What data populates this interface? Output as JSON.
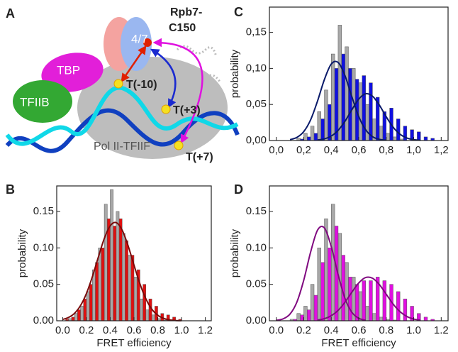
{
  "panels": [
    "A",
    "B",
    "C",
    "D"
  ],
  "diagram": {
    "rpb7": "Rpb7-",
    "c150": "C150",
    "tbp": "TBP",
    "tfiib": "TFIIB",
    "sub47": "4/7",
    "t_minus10": "T(-10)",
    "t_plus3": "T(+3)",
    "t_plus7": "T(+7)",
    "polii": "Pol II-TFIIF"
  },
  "chart_data": [
    {
      "type": "histogram",
      "ylabel": "probability",
      "xlabel": "FRET efficiency",
      "bins": [
        0,
        0.05,
        0.1,
        0.15,
        0.2,
        0.25,
        0.3,
        0.35,
        0.4,
        0.45,
        0.5,
        0.55,
        0.6,
        0.65,
        0.7,
        0.75,
        0.8,
        0.85,
        0.9,
        0.95,
        1.0,
        1.05,
        1.1,
        1.15,
        1.2
      ],
      "series": [
        {
          "color": "#a8a8a8",
          "values": [
            0,
            0.003,
            0.01,
            0.02,
            0.04,
            0.07,
            0.1,
            0.16,
            0.18,
            0.15,
            0.12,
            0.09,
            0.06,
            0.03,
            0.015,
            0.008,
            0.003,
            0.001,
            0,
            0,
            0,
            0,
            0,
            0
          ]
        },
        {
          "color": "#e01010",
          "values": [
            0.002,
            0.005,
            0.015,
            0.03,
            0.05,
            0.08,
            0.1,
            0.14,
            0.13,
            0.14,
            0.11,
            0.09,
            0.07,
            0.05,
            0.03,
            0.02,
            0.01,
            0.008,
            0.005,
            0.002,
            0,
            0,
            0,
            0
          ]
        }
      ],
      "curves": [
        {
          "color": "#7a0a0a",
          "x": [
            0,
            0.05,
            0.1,
            0.15,
            0.2,
            0.25,
            0.3,
            0.35,
            0.4,
            0.45,
            0.5,
            0.55,
            0.6,
            0.65,
            0.7,
            0.75,
            0.8,
            0.85,
            0.9,
            0.95,
            1.0
          ],
          "values": [
            0.0018,
            0.0046,
            0.0103,
            0.0208,
            0.0375,
            0.0605,
            0.0873,
            0.1128,
            0.1303,
            0.1347,
            0.1246,
            0.1032,
            0.0764,
            0.0507,
            0.0301,
            0.0159,
            0.0076,
            0.0032,
            0.0012,
            0.0004,
            0.0001
          ]
        }
      ],
      "xlim": [
        -0.05,
        1.25
      ],
      "ylim": [
        0,
        0.185
      ],
      "xticks": [
        {
          "value": 0,
          "label": "0.0"
        },
        {
          "value": 0.2,
          "label": "0.2"
        },
        {
          "value": 0.4,
          "label": "0.4"
        },
        {
          "value": 0.6,
          "label": "0.6"
        },
        {
          "value": 0.8,
          "label": "0.8"
        },
        {
          "value": 1,
          "label": "1.0"
        },
        {
          "value": 1.2,
          "label": "1.2"
        }
      ],
      "yticks": [
        {
          "value": 0,
          "label": "0.00"
        },
        {
          "value": 0.05,
          "label": "0.05"
        },
        {
          "value": 0.1,
          "label": "0.10"
        },
        {
          "value": 0.15,
          "label": "0.15"
        }
      ]
    },
    {
      "type": "histogram",
      "ylabel": "probability",
      "bins": [
        0,
        0.05,
        0.1,
        0.15,
        0.2,
        0.25,
        0.3,
        0.35,
        0.4,
        0.45,
        0.5,
        0.55,
        0.6,
        0.65,
        0.7,
        0.75,
        0.8,
        0.85,
        0.9,
        0.95,
        1.0,
        1.05,
        1.1,
        1.15,
        1.2
      ],
      "series": [
        {
          "color": "#a8a8a8",
          "values": [
            0,
            0,
            0,
            0.003,
            0.01,
            0.02,
            0.04,
            0.07,
            0.12,
            0.16,
            0.13,
            0.1,
            0.08,
            0.05,
            0.03,
            0.02,
            0.01,
            0.005,
            0.002,
            0,
            0,
            0,
            0,
            0
          ]
        },
        {
          "color": "#1010e0",
          "values": [
            0,
            0,
            0,
            0.002,
            0.005,
            0.01,
            0.03,
            0.05,
            0.1,
            0.12,
            0.1,
            0.085,
            0.09,
            0.08,
            0.06,
            0.04,
            0.045,
            0.03,
            0.02,
            0.015,
            0.012,
            0.005,
            0.003,
            0
          ]
        }
      ],
      "curves": [
        {
          "color": "#0a1a6a",
          "x": [
            0.1,
            0.15,
            0.2,
            0.25,
            0.3,
            0.35,
            0.4,
            0.45,
            0.5,
            0.55,
            0.6,
            0.65,
            0.7,
            0.75,
            0.8
          ],
          "values": [
            0.0012,
            0.0043,
            0.0124,
            0.0288,
            0.0547,
            0.0845,
            0.106,
            0.1082,
            0.0899,
            0.0607,
            0.0333,
            0.0149,
            0.0054,
            0.0016,
            0.0004
          ]
        },
        {
          "color": "#0a1a6a",
          "x": [
            0.3,
            0.35,
            0.4,
            0.45,
            0.5,
            0.55,
            0.6,
            0.65,
            0.7,
            0.75,
            0.8,
            0.85,
            0.9,
            0.95,
            1.0,
            1.05
          ],
          "values": [
            0.0007,
            0.0023,
            0.0062,
            0.0141,
            0.0267,
            0.0427,
            0.0574,
            0.0648,
            0.0615,
            0.0491,
            0.0329,
            0.0186,
            0.0088,
            0.0035,
            0.0012,
            0.0003
          ]
        }
      ],
      "xlim": [
        -0.05,
        1.25
      ],
      "ylim": [
        0,
        0.185
      ],
      "xticks": [
        {
          "value": 0,
          "label": "0,0"
        },
        {
          "value": 0.2,
          "label": "0,2"
        },
        {
          "value": 0.4,
          "label": "0,4"
        },
        {
          "value": 0.6,
          "label": "0,6"
        },
        {
          "value": 0.8,
          "label": "0,8"
        },
        {
          "value": 1,
          "label": "1,0"
        },
        {
          "value": 1.2,
          "label": "1,2"
        }
      ],
      "yticks": [
        {
          "value": 0,
          "label": "0,00"
        },
        {
          "value": 0.05,
          "label": "0,05"
        },
        {
          "value": 0.1,
          "label": "0,10"
        },
        {
          "value": 0.15,
          "label": "0,15"
        }
      ]
    },
    {
      "type": "histogram",
      "ylabel": "probability",
      "xlabel": "FRET efficiency",
      "bins": [
        0,
        0.05,
        0.1,
        0.15,
        0.2,
        0.25,
        0.3,
        0.35,
        0.4,
        0.45,
        0.5,
        0.55,
        0.6,
        0.65,
        0.7,
        0.75,
        0.8,
        0.85,
        0.9,
        0.95,
        1.0,
        1.05,
        1.1,
        1.15,
        1.2
      ],
      "series": [
        {
          "color": "#a8a8a8",
          "values": [
            0,
            0,
            0.002,
            0.01,
            0.02,
            0.05,
            0.1,
            0.14,
            0.16,
            0.12,
            0.08,
            0.06,
            0.04,
            0.02,
            0.01,
            0.005,
            0.002,
            0.001,
            0,
            0,
            0,
            0,
            0,
            0
          ]
        },
        {
          "color": "#e010e0",
          "values": [
            0,
            0,
            0.002,
            0.008,
            0.015,
            0.035,
            0.08,
            0.1,
            0.13,
            0.09,
            0.06,
            0.05,
            0.055,
            0.055,
            0.06,
            0.055,
            0.05,
            0.04,
            0.03,
            0.02,
            0.01,
            0.005,
            0.002,
            0
          ]
        }
      ],
      "curves": [
        {
          "color": "#800a80",
          "x": [
            0,
            0.05,
            0.1,
            0.15,
            0.2,
            0.25,
            0.3,
            0.35,
            0.4,
            0.45,
            0.5,
            0.55,
            0.6,
            0.65
          ],
          "values": [
            0.0006,
            0.0026,
            0.0092,
            0.0257,
            0.0558,
            0.0944,
            0.1243,
            0.1274,
            0.1018,
            0.0633,
            0.0306,
            0.0116,
            0.0034,
            0.0008
          ]
        },
        {
          "color": "#800a80",
          "x": [
            0.3,
            0.35,
            0.4,
            0.45,
            0.5,
            0.55,
            0.6,
            0.65,
            0.7,
            0.75,
            0.8,
            0.85,
            0.9,
            0.95,
            1.0,
            1.05
          ],
          "values": [
            0.001,
            0.0029,
            0.0069,
            0.0143,
            0.0255,
            0.0392,
            0.0519,
            0.0593,
            0.0584,
            0.0497,
            0.0364,
            0.023,
            0.0125,
            0.0059,
            0.0024,
            0.0008
          ]
        }
      ],
      "xlim": [
        -0.05,
        1.25
      ],
      "ylim": [
        0,
        0.185
      ],
      "xticks": [
        {
          "value": 0,
          "label": "0.0"
        },
        {
          "value": 0.2,
          "label": "0.2"
        },
        {
          "value": 0.4,
          "label": "0.4"
        },
        {
          "value": 0.6,
          "label": "0.6"
        },
        {
          "value": 0.8,
          "label": "0.8"
        },
        {
          "value": 1,
          "label": "1.0"
        },
        {
          "value": 1.2,
          "label": "1.2"
        }
      ],
      "yticks": [
        {
          "value": 0,
          "label": "0.00"
        },
        {
          "value": 0.05,
          "label": "0.05"
        },
        {
          "value": 0.1,
          "label": "0.10"
        },
        {
          "value": 0.15,
          "label": "0.15"
        }
      ]
    }
  ]
}
